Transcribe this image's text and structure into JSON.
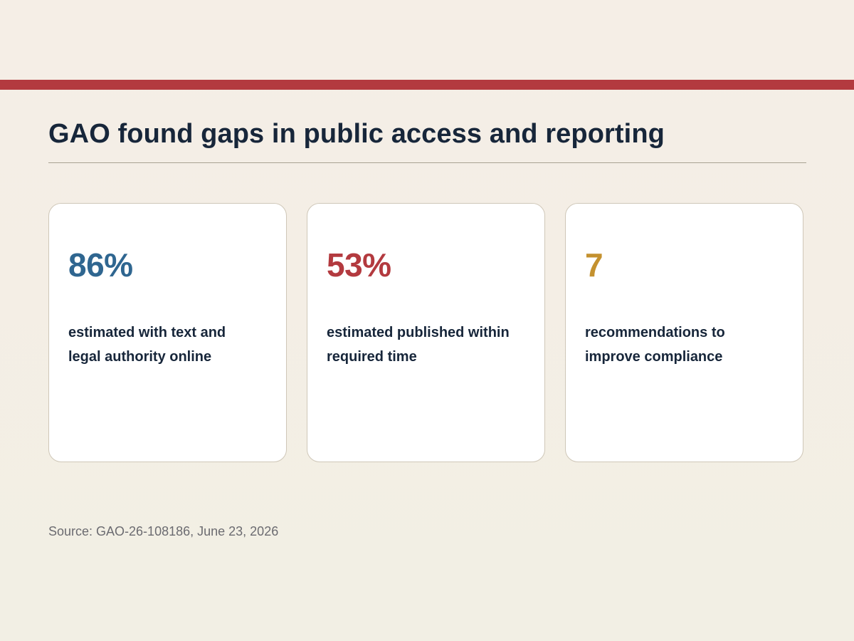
{
  "theme": {
    "accent_red": "#b33a3f",
    "title_color": "#17263a",
    "blue": "#2f6690",
    "red": "#b33a3f",
    "gold": "#c4912f"
  },
  "header": {
    "title": "GAO found gaps in public access and reporting"
  },
  "stats": [
    {
      "value": "86%",
      "label": "estimated with text and legal authority online",
      "color": "#2f6690"
    },
    {
      "value": "53%",
      "label": "estimated published within required time",
      "color": "#b33a3f"
    },
    {
      "value": "7",
      "label": "recommendations to improve compliance",
      "color": "#c4912f"
    }
  ],
  "footer": {
    "source": "Source: GAO-26-108186, June 23, 2026"
  }
}
